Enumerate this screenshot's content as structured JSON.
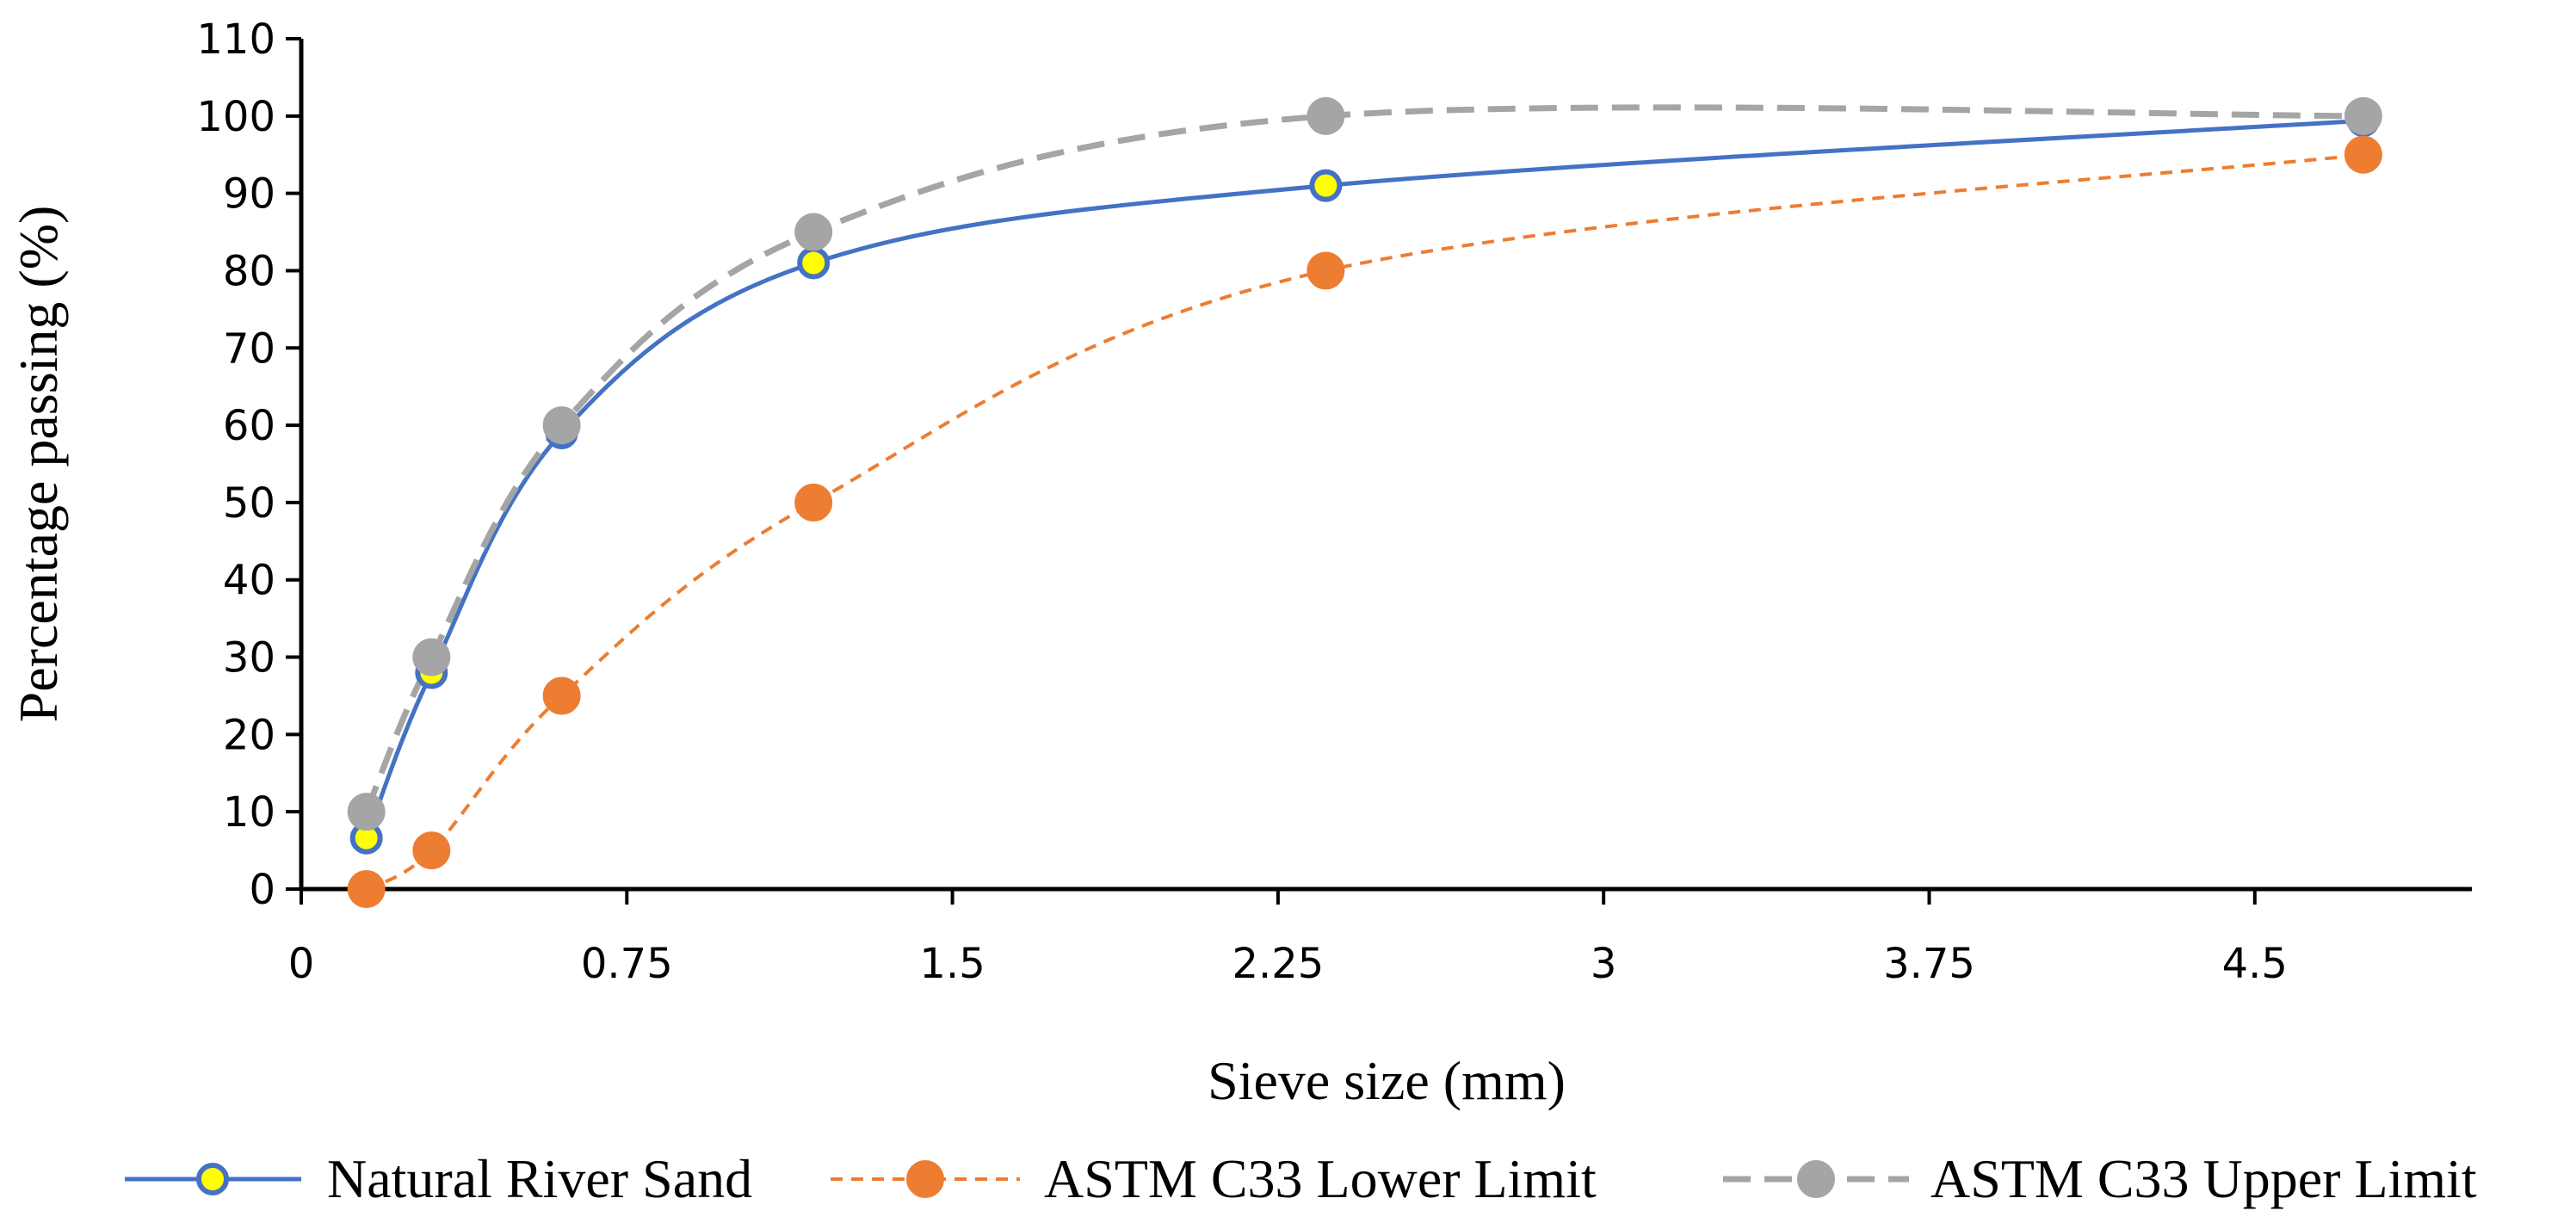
{
  "chart_data": {
    "type": "scatter",
    "title": "",
    "xlabel": "Sieve size (mm)",
    "ylabel": "Percentage passing (%)",
    "xlim": [
      0,
      5.0
    ],
    "ylim": [
      0,
      110
    ],
    "xticks": [
      0,
      0.75,
      1.5,
      2.25,
      3,
      3.75,
      4.5
    ],
    "xtick_labels": [
      "0",
      "0.75",
      "1.5",
      "2.25",
      "3",
      "3.75",
      "4.5"
    ],
    "yticks": [
      0,
      10,
      20,
      30,
      40,
      50,
      60,
      70,
      80,
      90,
      100,
      110
    ],
    "ytick_labels": [
      "0",
      "10",
      "20",
      "30",
      "40",
      "50",
      "60",
      "70",
      "80",
      "90",
      "100",
      "110"
    ],
    "grid": false,
    "legend_position": "bottom",
    "series": [
      {
        "name": "Natural River Sand",
        "x": [
          0.15,
          0.3,
          0.6,
          1.18,
          2.36,
          4.75
        ],
        "y": [
          6.6,
          28,
          59,
          81,
          91,
          99.4
        ],
        "color": "#4472c4",
        "marker_fill": "#ffff00",
        "dash": "solid"
      },
      {
        "name": "ASTM C33 Lower Limit",
        "x": [
          0.15,
          0.3,
          0.6,
          1.18,
          2.36,
          4.75
        ],
        "y": [
          0,
          5,
          25,
          50,
          80,
          95
        ],
        "color": "#ed7d31",
        "marker_fill": "#ed7d31",
        "dash": "short"
      },
      {
        "name": "ASTM C33 Upper Limit",
        "x": [
          0.15,
          0.3,
          0.6,
          1.18,
          2.36,
          4.75
        ],
        "y": [
          10,
          30,
          60,
          85,
          100,
          100
        ],
        "color": "#a5a5a5",
        "marker_fill": "#a5a5a5",
        "dash": "long"
      }
    ]
  }
}
